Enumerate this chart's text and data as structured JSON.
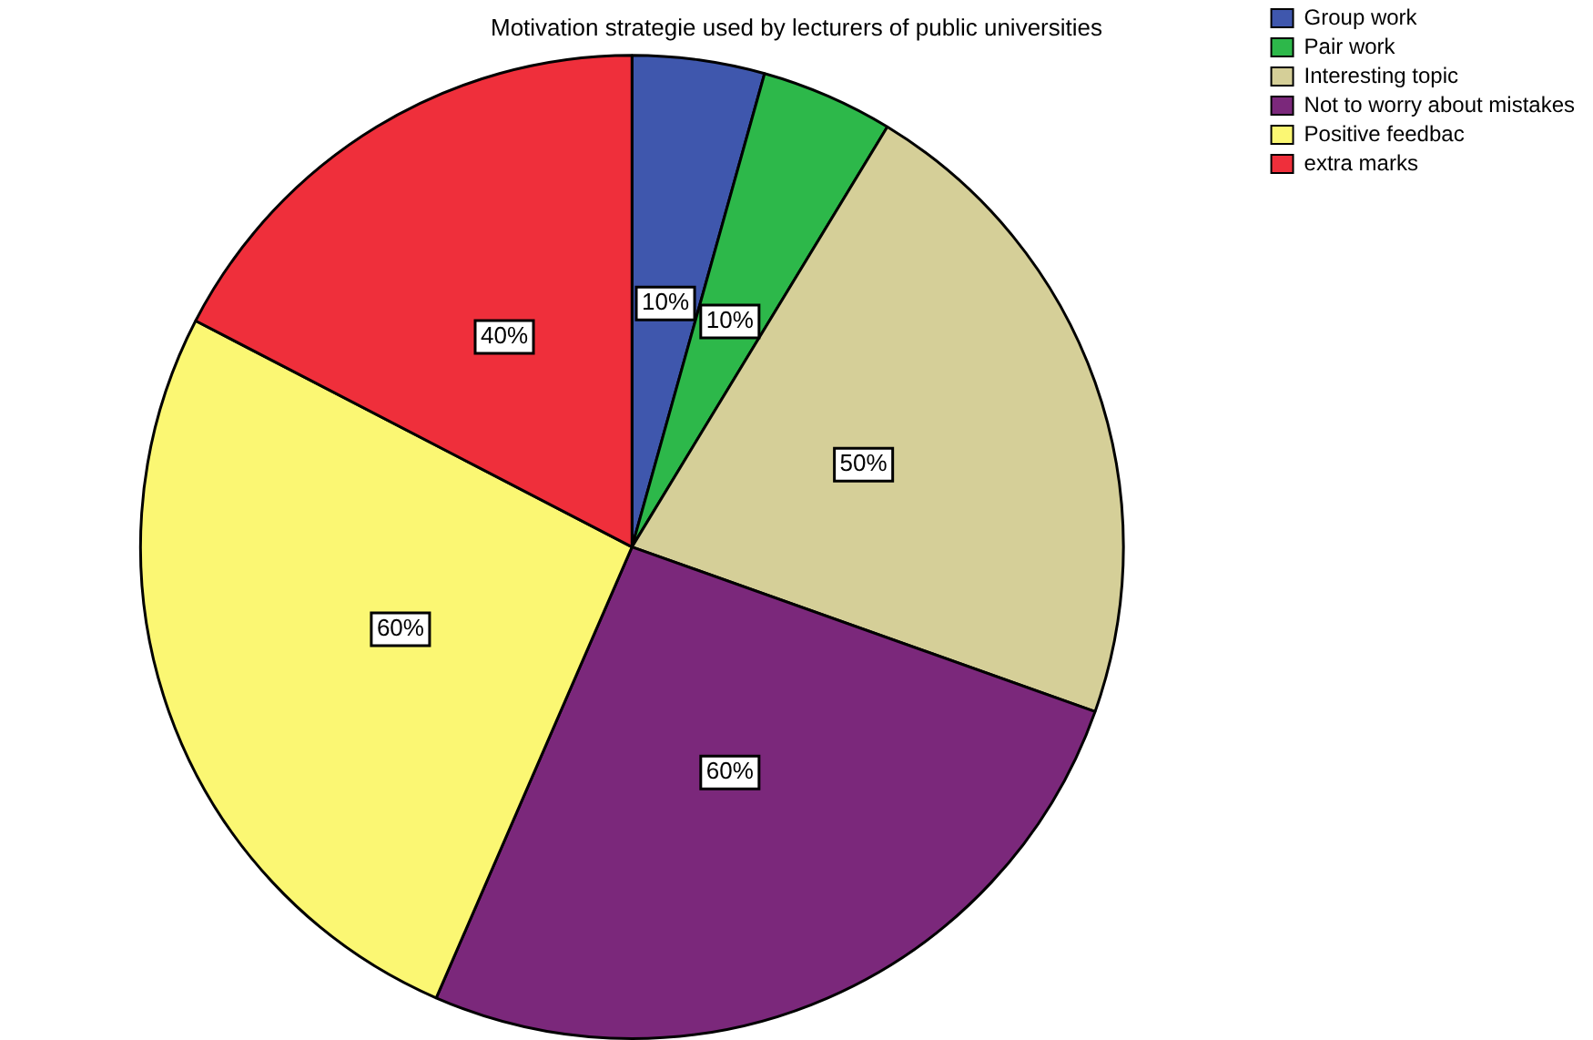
{
  "chart_data": {
    "type": "pie",
    "title": "Motivation strategie used by lecturers of public universities",
    "categories": [
      "Group work",
      "Pair work",
      "Interesting topic",
      "Not to worry about mistakes",
      "Positive feedbac",
      "extra marks"
    ],
    "values": [
      10,
      10,
      50,
      60,
      60,
      40
    ],
    "value_labels": [
      "10%",
      "10%",
      "50%",
      "60%",
      "60%",
      "40%"
    ],
    "colors": [
      "#3f57ad",
      "#2db84a",
      "#d5cf98",
      "#7b287b",
      "#fbf773",
      "#ef2f3b"
    ],
    "legend": "top right"
  }
}
